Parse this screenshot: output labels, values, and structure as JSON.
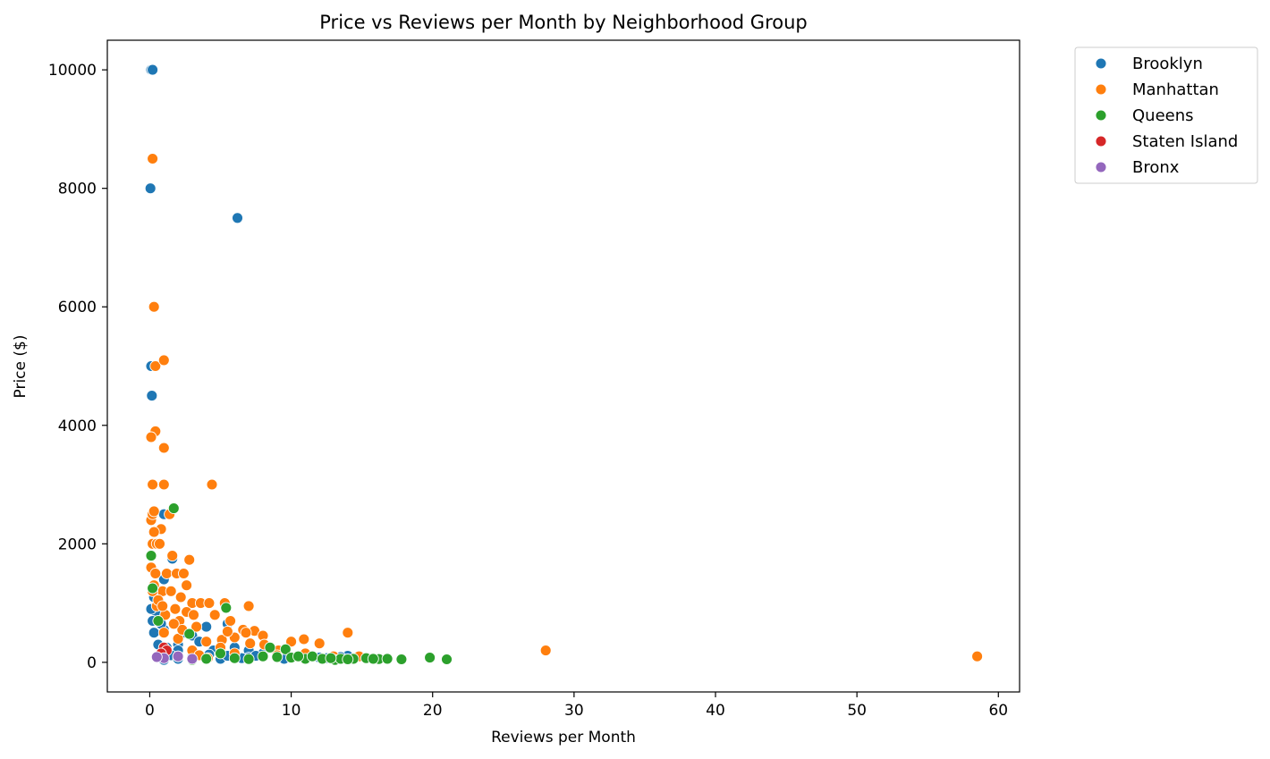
{
  "chart_data": {
    "type": "scatter",
    "title": "Price vs Reviews per Month by Neighborhood Group",
    "xlabel": "Reviews per Month",
    "ylabel": "Price ($)",
    "xlim": [
      -3,
      61.5
    ],
    "ylim": [
      -500,
      10500
    ],
    "xticks": [
      0,
      10,
      20,
      30,
      40,
      50,
      60
    ],
    "yticks": [
      0,
      2000,
      4000,
      6000,
      8000,
      10000
    ],
    "grid": false,
    "legend": {
      "position": "outside-top-right"
    },
    "series": [
      {
        "name": "Brooklyn",
        "color": "#1f77b4",
        "points": [
          [
            0.1,
            10000
          ],
          [
            0.2,
            10000
          ],
          [
            0.05,
            8000
          ],
          [
            6.2,
            7500
          ],
          [
            0.1,
            5000
          ],
          [
            0.15,
            4500
          ],
          [
            1.0,
            2500
          ],
          [
            1.6,
            1750
          ],
          [
            1.0,
            1400
          ],
          [
            0.5,
            1200
          ],
          [
            0.3,
            1100
          ],
          [
            5.5,
            650
          ],
          [
            4.0,
            600
          ],
          [
            1.0,
            550
          ],
          [
            2.0,
            300
          ],
          [
            3.0,
            450
          ],
          [
            7.0,
            200
          ],
          [
            7.0,
            80
          ],
          [
            1.0,
            40
          ],
          [
            5.0,
            60
          ],
          [
            9.0,
            100
          ],
          [
            11.0,
            120
          ],
          [
            14.0,
            110
          ],
          [
            2.0,
            200
          ],
          [
            0.5,
            800
          ],
          [
            0.2,
            700
          ],
          [
            0.1,
            900
          ],
          [
            3.5,
            350
          ],
          [
            6.0,
            250
          ],
          [
            8.0,
            150
          ],
          [
            10.0,
            90
          ],
          [
            12.0,
            80
          ],
          [
            2.5,
            500
          ],
          [
            0.8,
            650
          ],
          [
            4.5,
            200
          ],
          [
            1.5,
            120
          ],
          [
            3.0,
            90
          ],
          [
            5.5,
            110
          ],
          [
            0.3,
            500
          ],
          [
            2.0,
            60
          ],
          [
            6.5,
            70
          ],
          [
            9.5,
            60
          ],
          [
            12.5,
            70
          ],
          [
            13.5,
            90
          ],
          [
            0.6,
            300
          ],
          [
            1.2,
            250
          ],
          [
            4.2,
            130
          ],
          [
            7.5,
            110
          ]
        ]
      },
      {
        "name": "Manhattan",
        "color": "#ff7f0e",
        "points": [
          [
            0.2,
            8500
          ],
          [
            0.3,
            6000
          ],
          [
            0.4,
            5000
          ],
          [
            1.0,
            5100
          ],
          [
            0.4,
            3900
          ],
          [
            0.1,
            3800
          ],
          [
            1.0,
            3620
          ],
          [
            0.2,
            3000
          ],
          [
            1.0,
            3000
          ],
          [
            4.4,
            3000
          ],
          [
            0.1,
            2400
          ],
          [
            0.2,
            2500
          ],
          [
            0.3,
            2550
          ],
          [
            1.4,
            2500
          ],
          [
            0.8,
            2250
          ],
          [
            0.3,
            2200
          ],
          [
            0.2,
            2000
          ],
          [
            0.5,
            2000
          ],
          [
            0.7,
            2000
          ],
          [
            1.6,
            1800
          ],
          [
            2.8,
            1730
          ],
          [
            0.1,
            1600
          ],
          [
            0.4,
            1500
          ],
          [
            1.2,
            1500
          ],
          [
            1.9,
            1500
          ],
          [
            2.4,
            1500
          ],
          [
            2.6,
            1300
          ],
          [
            0.9,
            1200
          ],
          [
            1.5,
            1200
          ],
          [
            2.2,
            1100
          ],
          [
            0.2,
            1200
          ],
          [
            3.0,
            1000
          ],
          [
            3.6,
            1000
          ],
          [
            4.2,
            1000
          ],
          [
            5.3,
            1000
          ],
          [
            7.0,
            950
          ],
          [
            0.5,
            950
          ],
          [
            1.8,
            900
          ],
          [
            2.6,
            850
          ],
          [
            3.1,
            800
          ],
          [
            4.6,
            800
          ],
          [
            5.7,
            700
          ],
          [
            6.6,
            550
          ],
          [
            7.4,
            530
          ],
          [
            8.0,
            450
          ],
          [
            10.9,
            390
          ],
          [
            12.0,
            320
          ],
          [
            14.0,
            500
          ],
          [
            10.0,
            350
          ],
          [
            5.1,
            380
          ],
          [
            6.0,
            420
          ],
          [
            7.1,
            320
          ],
          [
            8.1,
            300
          ],
          [
            9.1,
            200
          ],
          [
            11.0,
            150
          ],
          [
            13.0,
            100
          ],
          [
            14.8,
            100
          ],
          [
            3.3,
            600
          ],
          [
            2.1,
            700
          ],
          [
            1.1,
            800
          ],
          [
            0.6,
            1050
          ],
          [
            0.3,
            1300
          ],
          [
            4.0,
            350
          ],
          [
            5.0,
            250
          ],
          [
            6.0,
            150
          ],
          [
            3.0,
            200
          ],
          [
            2.0,
            400
          ],
          [
            1.0,
            500
          ],
          [
            28.0,
            200
          ],
          [
            58.5,
            100
          ],
          [
            4.1,
            70
          ],
          [
            3.5,
            120
          ],
          [
            2.3,
            550
          ],
          [
            1.7,
            650
          ],
          [
            0.9,
            950
          ],
          [
            6.8,
            500
          ],
          [
            9.0,
            120
          ],
          [
            5.5,
            520
          ]
        ]
      },
      {
        "name": "Queens",
        "color": "#2ca02c",
        "points": [
          [
            1.7,
            2600
          ],
          [
            0.1,
            1800
          ],
          [
            0.2,
            1250
          ],
          [
            5.4,
            920
          ],
          [
            0.6,
            700
          ],
          [
            2.8,
            480
          ],
          [
            5.0,
            150
          ],
          [
            3.0,
            40
          ],
          [
            8.0,
            100
          ],
          [
            8.5,
            250
          ],
          [
            9.6,
            220
          ],
          [
            10.0,
            80
          ],
          [
            11.0,
            60
          ],
          [
            11.5,
            100
          ],
          [
            12.2,
            60
          ],
          [
            13.1,
            40
          ],
          [
            13.5,
            60
          ],
          [
            14.4,
            60
          ],
          [
            15.3,
            70
          ],
          [
            16.2,
            55
          ],
          [
            16.8,
            60
          ],
          [
            17.8,
            50
          ],
          [
            19.8,
            80
          ],
          [
            21.0,
            50
          ],
          [
            6.0,
            70
          ],
          [
            7.0,
            55
          ],
          [
            4.0,
            60
          ],
          [
            9.0,
            90
          ],
          [
            10.5,
            100
          ],
          [
            12.8,
            70
          ],
          [
            14.0,
            50
          ],
          [
            15.8,
            60
          ]
        ]
      },
      {
        "name": "Staten Island",
        "color": "#d62728",
        "points": [
          [
            1.0,
            250
          ],
          [
            1.2,
            200
          ],
          [
            2.0,
            100
          ],
          [
            0.8,
            150
          ]
        ]
      },
      {
        "name": "Bronx",
        "color": "#9467bd",
        "points": [
          [
            2.0,
            100
          ],
          [
            1.0,
            70
          ],
          [
            3.0,
            60
          ],
          [
            0.5,
            90
          ]
        ]
      }
    ]
  }
}
